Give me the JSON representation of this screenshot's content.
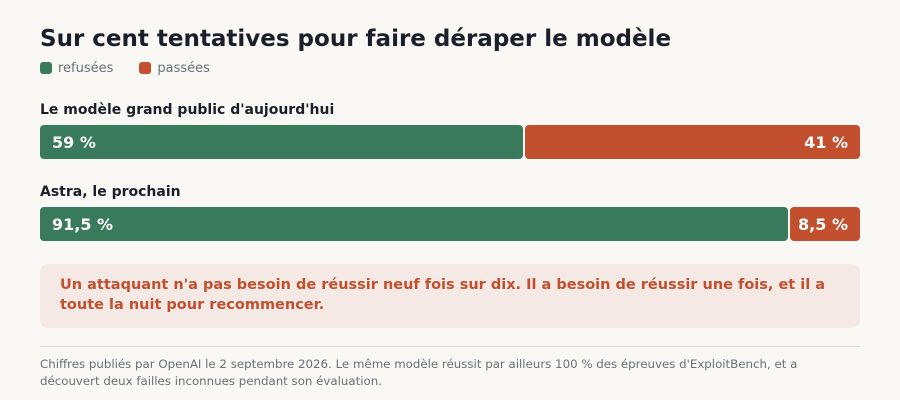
{
  "title": "Sur cent tentatives pour faire déraper le modèle",
  "colors": {
    "refused": "#3a7a5c",
    "passed": "#c24f2e",
    "callout_text": "#c24f2e"
  },
  "chart_data": {
    "type": "bar",
    "orientation": "horizontal",
    "stacked": true,
    "title": "Sur cent tentatives pour faire déraper le modèle",
    "categories": [
      "Le modèle grand public d'aujourd'hui",
      "Astra, le prochain"
    ],
    "series": [
      {
        "name": "refusées",
        "values": [
          59,
          91.5
        ],
        "labels": [
          "59 %",
          "91,5 %"
        ],
        "color": "#3a7a5c"
      },
      {
        "name": "passées",
        "values": [
          41,
          8.5
        ],
        "labels": [
          "41 %",
          "8,5 %"
        ],
        "color": "#c24f2e"
      }
    ],
    "xlim": [
      0,
      100
    ],
    "legend": "top-left"
  },
  "callout": "Un attaquant n'a pas besoin de réussir neuf fois sur dix. Il a besoin de réussir une fois, et il a toute la nuit pour recommencer.",
  "footnote": "Chiffres publiés par OpenAI le 2 septembre 2026. Le même modèle réussit par ailleurs 100 % des épreuves d'ExploitBench, et a découvert deux failles inconnues pendant son évaluation."
}
